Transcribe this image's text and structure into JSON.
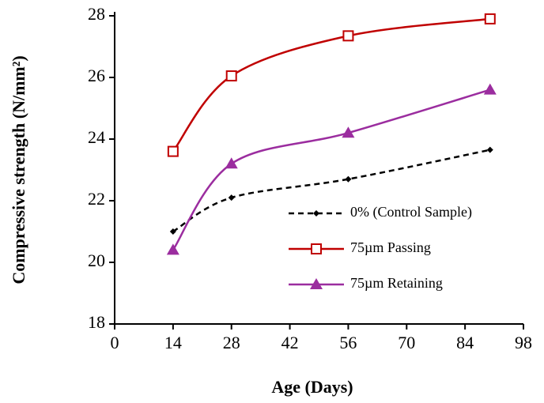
{
  "chart_data": {
    "type": "line",
    "x_label": "Age (Days)",
    "y_label": "Compressive strength (N/mm²)",
    "xlim": [
      0,
      98
    ],
    "xticks": [
      0,
      14,
      28,
      42,
      56,
      70,
      84,
      98
    ],
    "ylim": [
      18,
      28
    ],
    "yticks": [
      18,
      20,
      22,
      24,
      26,
      28
    ],
    "legend": "right",
    "series": [
      {
        "name": "0% (Control Sample)",
        "color": "#000000",
        "marker": "diamond",
        "dash": true,
        "x": [
          14,
          28,
          56,
          90
        ],
        "values": [
          21.0,
          22.1,
          22.7,
          23.65
        ]
      },
      {
        "name": "75µm Passing",
        "color": "#c00000",
        "marker": "square",
        "dash": false,
        "x": [
          14,
          28,
          56,
          90
        ],
        "values": [
          23.6,
          26.05,
          27.35,
          27.9
        ]
      },
      {
        "name": "75µm Retaining",
        "color": "#9b2d9f",
        "marker": "triangle",
        "dash": false,
        "x": [
          14,
          28,
          56,
          90
        ],
        "values": [
          20.4,
          23.2,
          24.2,
          25.6
        ]
      }
    ]
  }
}
